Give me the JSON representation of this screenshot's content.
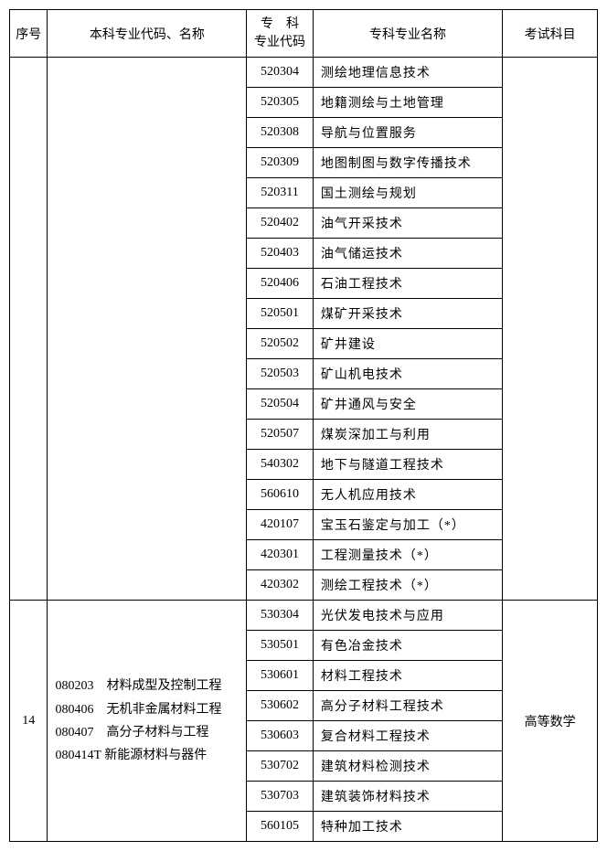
{
  "headers": {
    "seq": "序号",
    "major": "本科专业代码、名称",
    "code_line1": "专　科",
    "code_line2": "专业代码",
    "name": "专科专业名称",
    "exam": "考试科目"
  },
  "group1": {
    "seq": "",
    "major": "",
    "exam": "",
    "rows": [
      {
        "code": "520304",
        "name": "测绘地理信息技术"
      },
      {
        "code": "520305",
        "name": "地籍测绘与土地管理"
      },
      {
        "code": "520308",
        "name": "导航与位置服务"
      },
      {
        "code": "520309",
        "name": "地图制图与数字传播技术"
      },
      {
        "code": "520311",
        "name": "国土测绘与规划"
      },
      {
        "code": "520402",
        "name": "油气开采技术"
      },
      {
        "code": "520403",
        "name": "油气储运技术"
      },
      {
        "code": "520406",
        "name": "石油工程技术"
      },
      {
        "code": "520501",
        "name": "煤矿开采技术"
      },
      {
        "code": "520502",
        "name": "矿井建设"
      },
      {
        "code": "520503",
        "name": "矿山机电技术"
      },
      {
        "code": "520504",
        "name": "矿井通风与安全"
      },
      {
        "code": "520507",
        "name": "煤炭深加工与利用"
      },
      {
        "code": "540302",
        "name": "地下与隧道工程技术"
      },
      {
        "code": "560610",
        "name": "无人机应用技术"
      },
      {
        "code": "420107",
        "name": "宝玉石鉴定与加工（*）"
      },
      {
        "code": "420301",
        "name": "工程测量技术（*）"
      },
      {
        "code": "420302",
        "name": "测绘工程技术（*）"
      }
    ]
  },
  "group2": {
    "seq": "14",
    "major_lines": [
      "080203　材料成型及控制工程",
      "080406　无机非金属材料工程",
      "080407　高分子材料与工程",
      "080414T 新能源材料与器件"
    ],
    "exam": "高等数学",
    "rows": [
      {
        "code": "530304",
        "name": "光伏发电技术与应用"
      },
      {
        "code": "530501",
        "name": "有色冶金技术"
      },
      {
        "code": "530601",
        "name": "材料工程技术"
      },
      {
        "code": "530602",
        "name": "高分子材料工程技术"
      },
      {
        "code": "530603",
        "name": "复合材料工程技术"
      },
      {
        "code": "530702",
        "name": "建筑材料检测技术"
      },
      {
        "code": "530703",
        "name": "建筑装饰材料技术"
      },
      {
        "code": "560105",
        "name": "特种加工技术"
      }
    ]
  }
}
